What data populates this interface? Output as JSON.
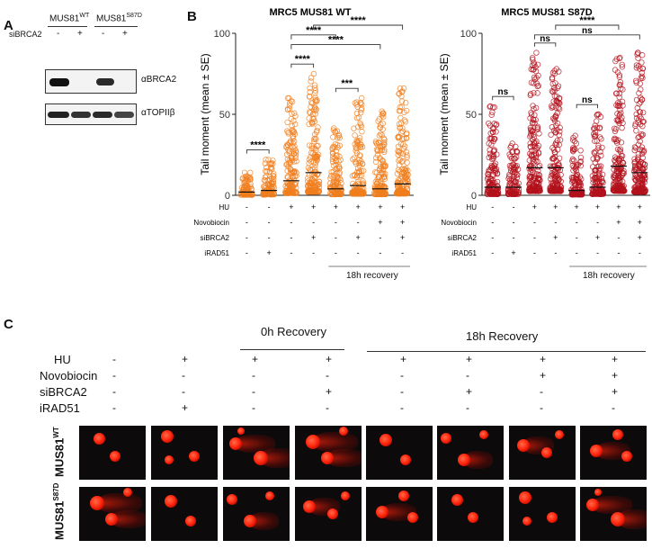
{
  "panel_a": {
    "letter": "A",
    "mus81_wt_prefix": "MUS81",
    "mus81_wt_sup": "WT",
    "mus81_s87d_prefix": "MUS81",
    "mus81_s87d_sup": "S87D",
    "sibrca2_label": "siBRCA2",
    "sign_minus": "-",
    "sign_plus": "+",
    "blot1_label": "αBRCA2",
    "blot2_label": "αTOPIIβ"
  },
  "panel_b": {
    "letter": "B",
    "row_labels": [
      "HU",
      "Novobiocin",
      "siBRCA2",
      "iRAD51"
    ],
    "conditions": [
      [
        "-",
        "-",
        "-",
        "-"
      ],
      [
        "-",
        "-",
        "-",
        "+"
      ],
      [
        "+",
        "-",
        "-",
        "-"
      ],
      [
        "+",
        "-",
        "+",
        "-"
      ],
      [
        "+",
        "-",
        "-",
        "-"
      ],
      [
        "+",
        "-",
        "+",
        "-"
      ],
      [
        "+",
        "+",
        "-",
        "-"
      ],
      [
        "+",
        "+",
        "+",
        "-"
      ]
    ],
    "recovery_label": "18h recovery"
  },
  "chart_data": [
    {
      "type": "scatter",
      "title": "MRC5 MUS81 WT",
      "ylabel": "Tail moment (mean ± SE)",
      "ylim": [
        0,
        100
      ],
      "yticks": [
        0,
        50,
        100
      ],
      "color": "#f07e1e",
      "means": [
        2,
        3,
        9,
        14,
        4,
        6,
        4,
        7
      ],
      "max_points": [
        14,
        22,
        60,
        75,
        42,
        60,
        52,
        68
      ],
      "significance": [
        {
          "from": 1,
          "to": 2,
          "label": "****",
          "level": 1
        },
        {
          "from": 3,
          "to": 4,
          "label": "****",
          "level": 1
        },
        {
          "from": 3,
          "to": 5,
          "label": "****",
          "level": 3
        },
        {
          "from": 5,
          "to": 6,
          "label": "***",
          "level": 1
        },
        {
          "from": 3,
          "to": 7,
          "label": "****",
          "level": 4
        },
        {
          "from": 4,
          "to": 8,
          "label": "****",
          "level": 2
        }
      ]
    },
    {
      "type": "scatter",
      "title": "MRC5 MUS81 S87D",
      "ylabel": "Tail moment (mean ± SE)",
      "ylim": [
        0,
        100
      ],
      "yticks": [
        0,
        50,
        100
      ],
      "color": "#b3121c",
      "means": [
        5,
        5,
        17,
        17,
        3,
        5,
        18,
        14
      ],
      "max_points": [
        55,
        32,
        88,
        78,
        38,
        50,
        85,
        88
      ],
      "significance": [
        {
          "from": 1,
          "to": 2,
          "label": "ns",
          "level": 1
        },
        {
          "from": 3,
          "to": 4,
          "label": "ns",
          "level": 1
        },
        {
          "from": 5,
          "to": 6,
          "label": "ns",
          "level": 1
        },
        {
          "from": 4,
          "to": 7,
          "label": "****",
          "level": 2
        },
        {
          "from": 3,
          "to": 8,
          "label": "ns",
          "level": 3
        }
      ]
    }
  ],
  "panel_c": {
    "letter": "C",
    "recovery_0h": "0h Recovery",
    "recovery_18h": "18h Recovery",
    "row_labels": [
      "HU",
      "Novobiocin",
      "siBRCA2",
      "iRAD51"
    ],
    "columns": [
      [
        "-",
        "-",
        "-",
        "-"
      ],
      [
        "+",
        "-",
        "-",
        "+"
      ],
      [
        "+",
        "-",
        "-",
        "-"
      ],
      [
        "+",
        "-",
        "+",
        "-"
      ],
      [
        "+",
        "-",
        "-",
        "-"
      ],
      [
        "+",
        "-",
        "+",
        "-"
      ],
      [
        "+",
        "+",
        "-",
        "-"
      ],
      [
        "+",
        "+",
        "+",
        "-"
      ]
    ],
    "row1_prefix": "MUS81",
    "row1_sup": "WT",
    "row2_prefix": "MUS81",
    "row2_sup": "S87D"
  }
}
